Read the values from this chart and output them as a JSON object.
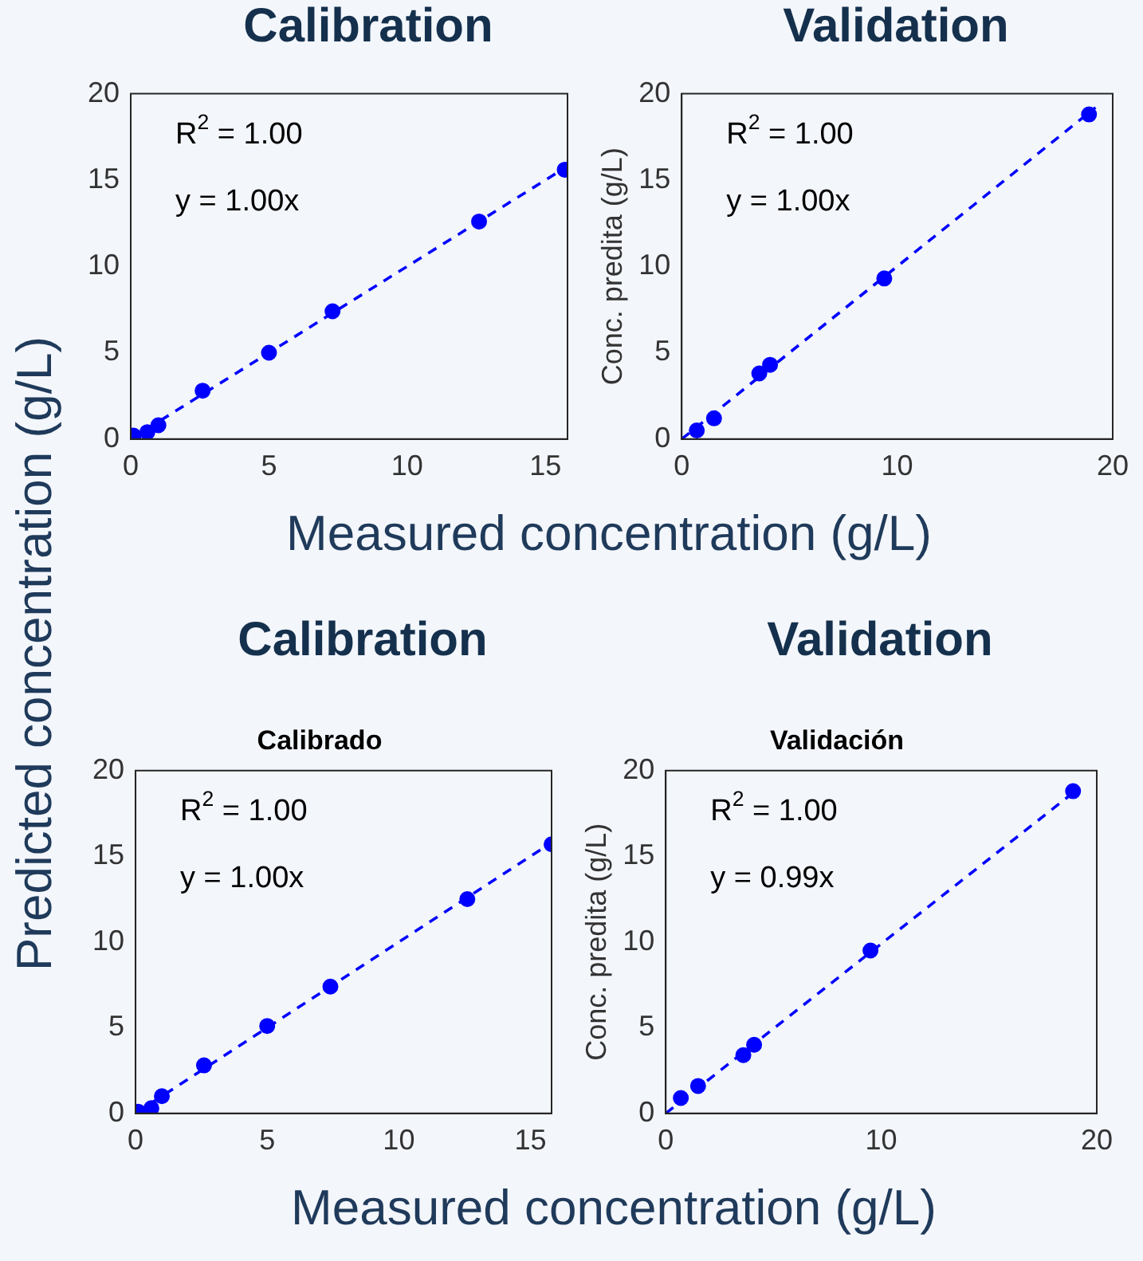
{
  "chart_data": [
    {
      "type": "scatter",
      "title": "Calibration",
      "xlabel": "Measured concentration (g/L)",
      "ylabel": "Predicted concentration (g/L)",
      "annotations": [
        "R$^{2}$ = 1.00",
        "y = 1.00x"
      ],
      "xlim": [
        0,
        15.8
      ],
      "ylim": [
        0,
        20
      ],
      "xticks": [
        0,
        5,
        10,
        15
      ],
      "yticks": [
        0,
        5,
        10,
        15,
        20
      ],
      "series": [
        {
          "type": "scatter",
          "color": "#0000ff",
          "marker": "circle",
          "x": [
            0.1,
            0.6,
            1.0,
            2.6,
            5.0,
            7.3,
            12.6,
            15.7
          ],
          "values": [
            0.2,
            0.4,
            0.8,
            2.8,
            5.0,
            7.4,
            12.6,
            15.6
          ]
        },
        {
          "type": "line",
          "color": "#0000ff",
          "marker": "none",
          "line_style": "dashed",
          "x": [
            0,
            15.8
          ],
          "values": [
            0,
            15.8
          ]
        }
      ]
    },
    {
      "type": "scatter",
      "title": "Validation",
      "ylabel": "Conc. predita (g/L)",
      "annotations": [
        "R$^{2}$ = 1.00",
        "y = 1.00x"
      ],
      "xlim": [
        0,
        20
      ],
      "ylim": [
        0,
        20
      ],
      "xticks": [
        0,
        10,
        20
      ],
      "yticks": [
        0,
        5,
        10,
        15,
        20
      ],
      "series": [
        {
          "type": "scatter",
          "color": "#0000ff",
          "marker": "circle",
          "x": [
            0.7,
            1.5,
            3.6,
            4.1,
            9.4,
            18.9
          ],
          "values": [
            0.5,
            1.2,
            3.8,
            4.3,
            9.3,
            18.8
          ]
        },
        {
          "type": "line",
          "color": "#0000ff",
          "marker": "none",
          "line_style": "dashed",
          "x": [
            0,
            19.2
          ],
          "values": [
            0,
            19.2
          ]
        }
      ]
    },
    {
      "type": "scatter",
      "title": "Calibration",
      "subtitle": "Calibrado",
      "xlabel": "Measured concentration (g/L)",
      "annotations": [
        "R$^{2}$ = 1.00",
        "y = 1.00x"
      ],
      "xlim": [
        0,
        15.8
      ],
      "ylim": [
        0,
        20
      ],
      "xticks": [
        0,
        5,
        10,
        15
      ],
      "yticks": [
        0,
        5,
        10,
        15,
        20
      ],
      "series": [
        {
          "type": "scatter",
          "color": "#0000ff",
          "marker": "circle",
          "x": [
            0.1,
            0.6,
            1.0,
            2.6,
            5.0,
            7.4,
            12.6,
            15.8
          ],
          "values": [
            0.1,
            0.3,
            1.0,
            2.8,
            5.1,
            7.4,
            12.5,
            15.7
          ]
        },
        {
          "type": "line",
          "color": "#0000ff",
          "marker": "none",
          "line_style": "dashed",
          "x": [
            0,
            15.8
          ],
          "values": [
            0,
            15.8
          ]
        }
      ]
    },
    {
      "type": "scatter",
      "title": "Validation",
      "subtitle": "Validación",
      "ylabel": "Conc. predita (g/L)",
      "annotations": [
        "R$^{2}$ = 1.00",
        "y = 0.99x"
      ],
      "xlim": [
        0,
        20
      ],
      "ylim": [
        0,
        20
      ],
      "xticks": [
        0,
        10,
        20
      ],
      "yticks": [
        0,
        5,
        10,
        15,
        20
      ],
      "series": [
        {
          "type": "scatter",
          "color": "#0000ff",
          "marker": "circle",
          "x": [
            0.7,
            1.5,
            3.6,
            4.1,
            9.5,
            18.9
          ],
          "values": [
            0.9,
            1.6,
            3.4,
            4.0,
            9.5,
            18.8
          ]
        },
        {
          "type": "line",
          "color": "#0000ff",
          "marker": "none",
          "line_style": "dashed",
          "x": [
            0,
            19.2
          ],
          "values": [
            0,
            19.0
          ]
        }
      ]
    }
  ]
}
